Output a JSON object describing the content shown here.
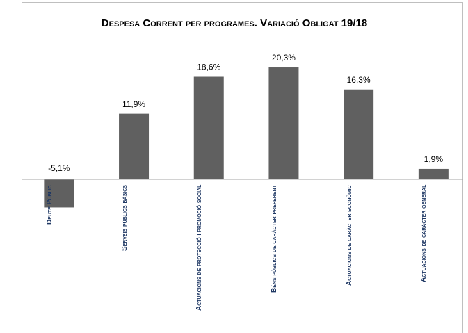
{
  "chart_data": {
    "type": "bar",
    "title": "Despesa Corrent per programes. Variació Obligat 19/18",
    "categories": [
      "Deute Públic",
      "Serveis públics bàsics",
      "Actuacions de protecció i promoció social",
      "Béns públics de caràcter preferent",
      "Actuacions de caràcter econòmic",
      "Actuacions de caràcter general"
    ],
    "values": [
      -5.1,
      11.9,
      18.6,
      20.3,
      16.3,
      1.9
    ],
    "value_labels": [
      "-5,1%",
      "11,9%",
      "18,6%",
      "20,3%",
      "16,3%",
      "1,9%"
    ],
    "color": "#606060"
  }
}
